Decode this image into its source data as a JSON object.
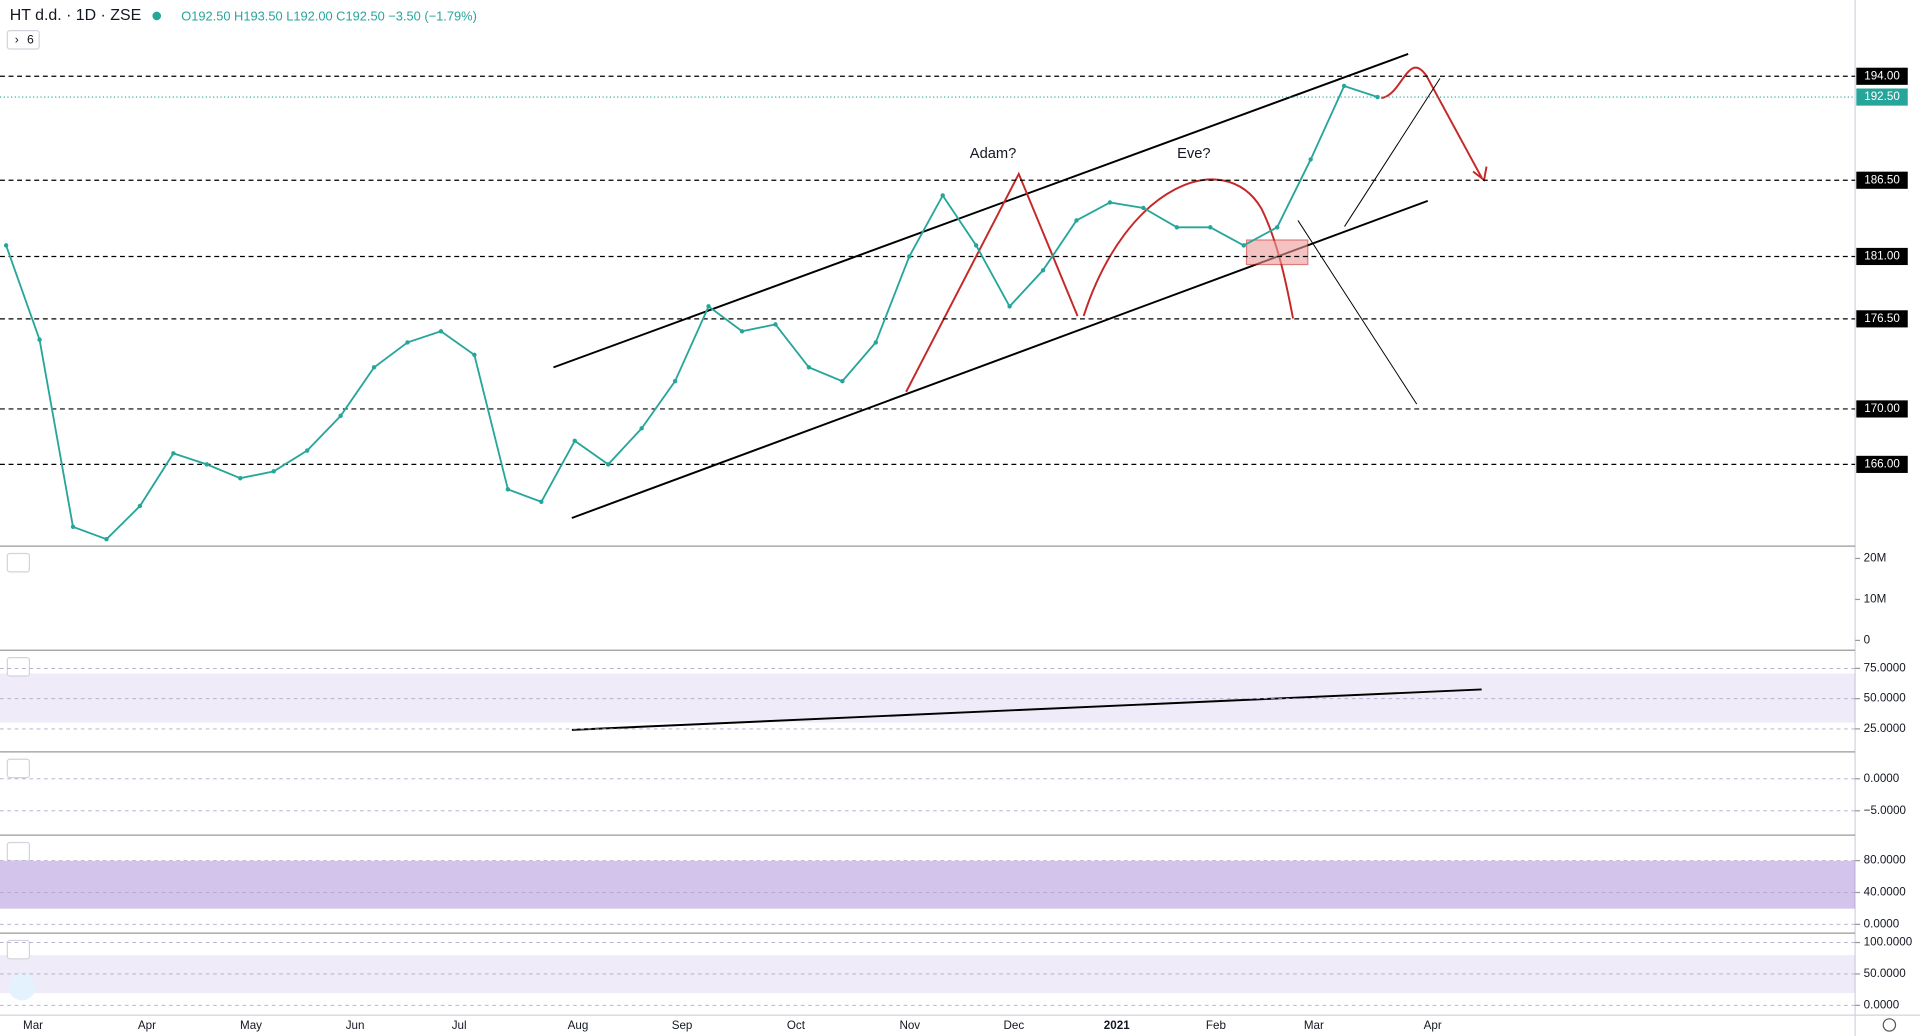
{
  "header": {
    "symbol": "HT d.d. · 1D · ZSE",
    "ohlc": "O192.50 H193.50 L192.00 C192.50 −3.50 (−1.79%)",
    "indicator_count": "6"
  },
  "chart_data": {
    "type": "line",
    "color": "#26a69a",
    "values": [
      181.8,
      175,
      161.5,
      160.6,
      163,
      166.8,
      166,
      165,
      165.5,
      167,
      169.5,
      173,
      174.8,
      175.6,
      173.9,
      164.2,
      163.3,
      167.7,
      166,
      168.6,
      172,
      177.4,
      175.6,
      176.1,
      173,
      172,
      174.8,
      181,
      185.4,
      181.8,
      177.4,
      180,
      183.6,
      184.9,
      184.5,
      183.1,
      183.1,
      181.8,
      183.1,
      188,
      193.3,
      192.5
    ],
    "ylim": [
      160.1,
      199.5
    ],
    "yticks": [
      {
        "value": 194,
        "label": "194.00"
      },
      {
        "value": 186.5,
        "label": "186.50"
      },
      {
        "value": 181,
        "label": "181.00"
      },
      {
        "value": 176.5,
        "label": "176.50"
      },
      {
        "value": 170,
        "label": "170.00"
      },
      {
        "value": 166,
        "label": "166.00"
      }
    ],
    "last_price": {
      "value": 192.5,
      "label": "192.50"
    },
    "xticks": [
      "Mar",
      "Apr",
      "May",
      "Jun",
      "Jul",
      "Aug",
      "Sep",
      "Oct",
      "Nov",
      "Dec",
      "2021",
      "Feb",
      "Mar",
      "Apr"
    ],
    "annotations": [
      "Adam?",
      "Eve?"
    ],
    "panes": [
      {
        "ylim": [
          -2400000,
          23000000
        ],
        "yticks": [
          {
            "value": 20000000,
            "label": "20M"
          },
          {
            "value": 10000000,
            "label": "10M"
          },
          0
        ]
      },
      {
        "ylim": [
          6,
          90
        ],
        "yticks": [
          {
            "value": 75,
            "label": "75.0000"
          },
          {
            "value": 50,
            "label": "50.0000"
          },
          {
            "value": 25,
            "label": "25.0000"
          }
        ]
      },
      {
        "ylim": [
          -8.8,
          4.2
        ],
        "yticks": [
          {
            "value": 0,
            "label": "0.0000"
          },
          {
            "value": -5,
            "label": "−5.0000"
          }
        ]
      },
      {
        "ylim": [
          -11,
          112
        ],
        "yticks": [
          {
            "value": 80,
            "label": "80.0000"
          },
          {
            "value": 40,
            "label": "40.0000"
          },
          {
            "value": 0,
            "label": "0.0000"
          }
        ]
      },
      {
        "ylim": [
          -15.6,
          115
        ],
        "yticks": [
          {
            "value": 100,
            "label": "100.0000"
          },
          {
            "value": 50,
            "label": "50.0000"
          },
          {
            "value": 0,
            "label": "0.0000"
          }
        ]
      }
    ]
  }
}
